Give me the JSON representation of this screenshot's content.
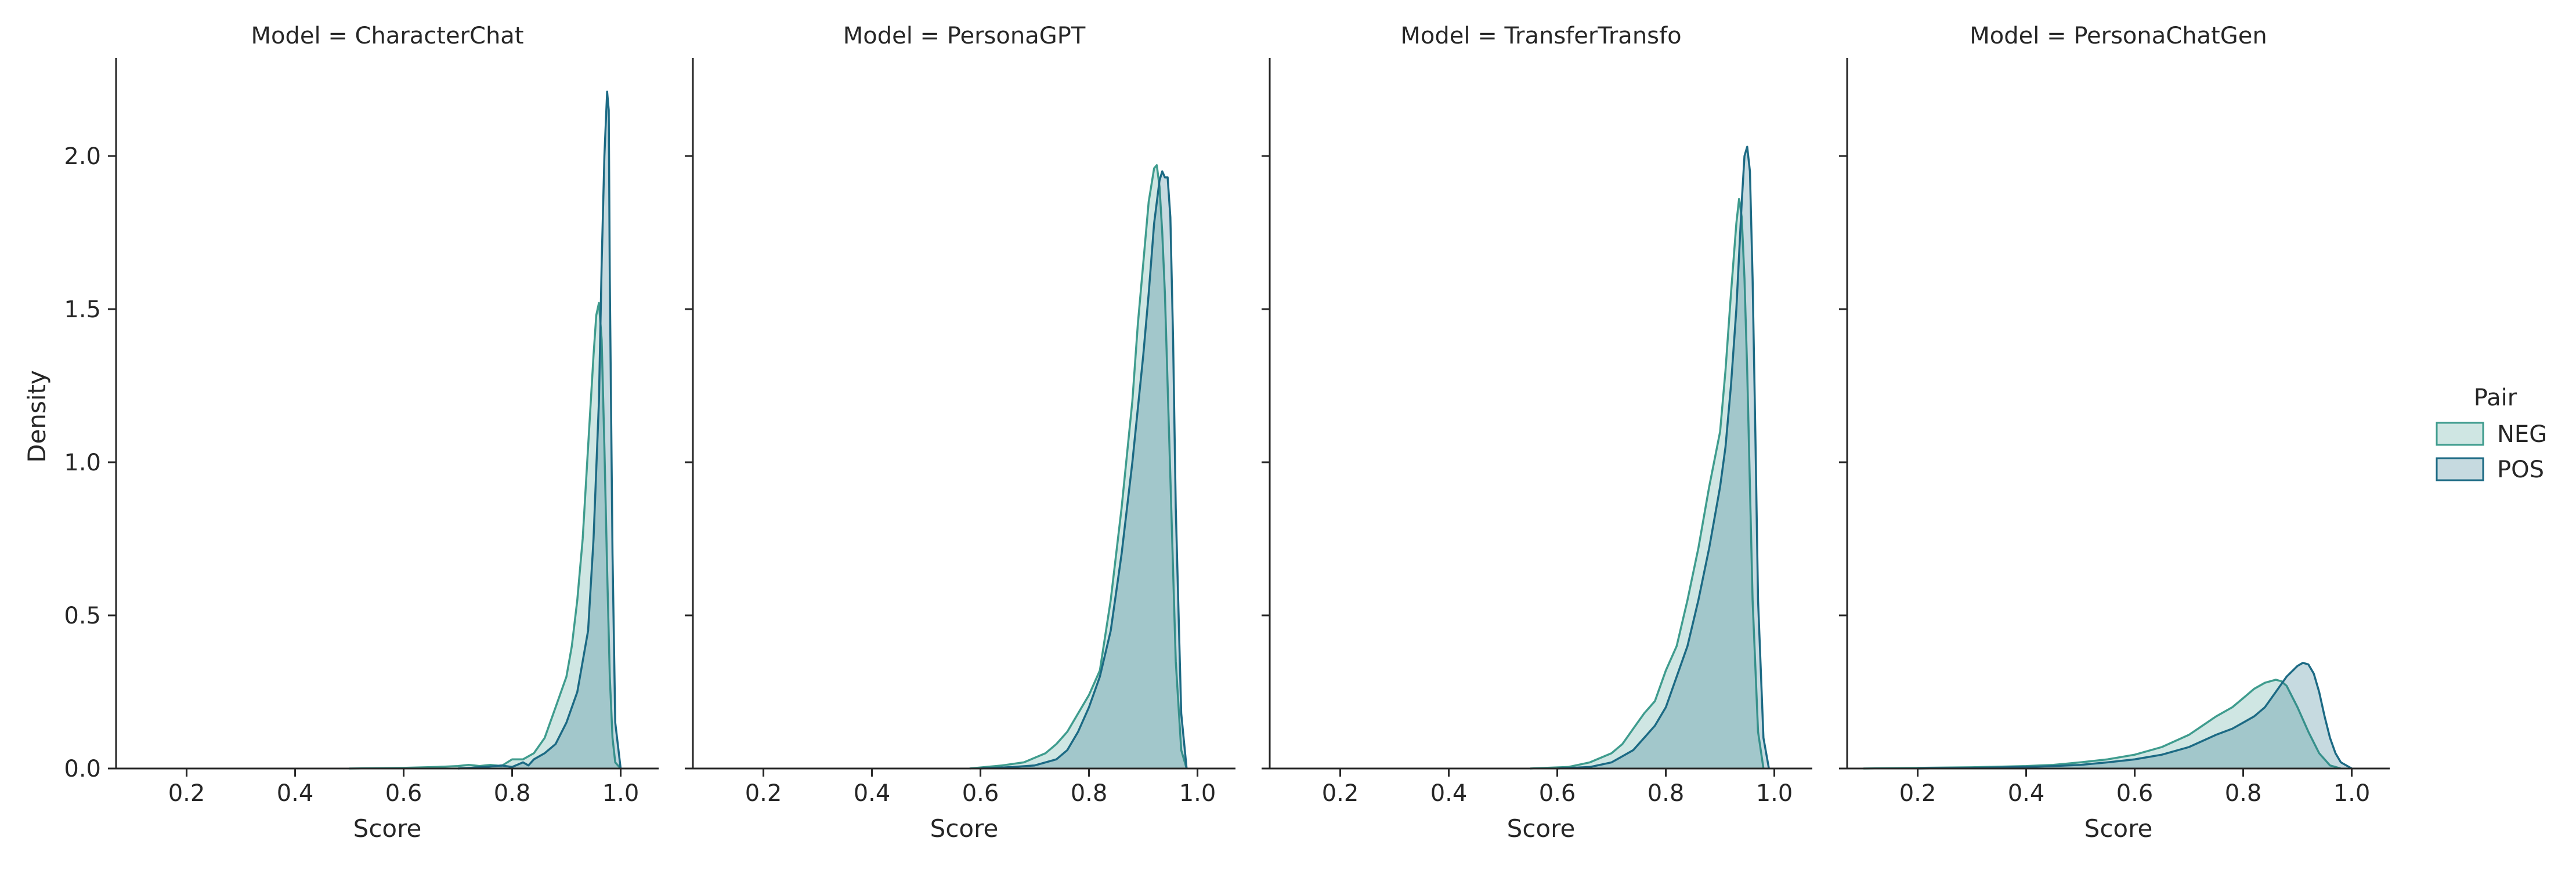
{
  "chart_data": {
    "type": "area",
    "kind": "kde",
    "facet_variable": "Model",
    "ylabel": "Density",
    "ylim": [
      0,
      2.32
    ],
    "yticks": [
      0.0,
      0.5,
      1.0,
      1.5,
      2.0
    ],
    "ytick_labels": [
      "0.0",
      "0.5",
      "1.0",
      "1.5",
      "2.0"
    ],
    "grid": false,
    "legend": {
      "title": "Pair",
      "placement": "right",
      "entries": [
        {
          "label": "NEG",
          "color": "#3f9c8e"
        },
        {
          "label": "POS",
          "color": "#1c6a84"
        }
      ]
    },
    "colors": {
      "NEG": "#3f9c8e",
      "POS": "#1c6a84"
    },
    "panels": [
      {
        "title": "Model = CharacterChat",
        "xlabel": "Score",
        "xlim": [
          0.07,
          1.07
        ],
        "xticks": [
          0.2,
          0.4,
          0.6,
          0.8,
          1.0
        ],
        "xtick_labels": [
          "0.2",
          "0.4",
          "0.6",
          "0.8",
          "1.0"
        ],
        "series": [
          {
            "name": "NEG",
            "x": [
              0.5,
              0.6,
              0.66,
              0.7,
              0.72,
              0.74,
              0.76,
              0.78,
              0.8,
              0.82,
              0.84,
              0.86,
              0.88,
              0.9,
              0.91,
              0.92,
              0.93,
              0.94,
              0.95,
              0.955,
              0.96,
              0.965,
              0.97,
              0.975,
              0.98,
              0.985,
              0.99,
              1.0
            ],
            "y": [
              0.0,
              0.002,
              0.005,
              0.008,
              0.012,
              0.008,
              0.012,
              0.008,
              0.03,
              0.03,
              0.05,
              0.1,
              0.2,
              0.3,
              0.4,
              0.55,
              0.75,
              1.05,
              1.35,
              1.48,
              1.52,
              1.4,
              1.05,
              0.65,
              0.3,
              0.1,
              0.02,
              0.0
            ]
          },
          {
            "name": "POS",
            "x": [
              0.7,
              0.75,
              0.78,
              0.8,
              0.82,
              0.83,
              0.84,
              0.86,
              0.88,
              0.9,
              0.92,
              0.94,
              0.95,
              0.96,
              0.965,
              0.97,
              0.975,
              0.978,
              0.98,
              0.985,
              0.99,
              1.0
            ],
            "y": [
              0.0,
              0.005,
              0.01,
              0.005,
              0.02,
              0.01,
              0.03,
              0.05,
              0.08,
              0.15,
              0.25,
              0.45,
              0.75,
              1.2,
              1.65,
              2.0,
              2.21,
              2.15,
              1.6,
              0.7,
              0.15,
              0.0
            ]
          }
        ]
      },
      {
        "title": "Model = PersonaGPT",
        "xlabel": "Score",
        "xlim": [
          0.07,
          1.07
        ],
        "xticks": [
          0.2,
          0.4,
          0.6,
          0.8,
          1.0
        ],
        "xtick_labels": [
          "0.2",
          "0.4",
          "0.6",
          "0.8",
          "1.0"
        ],
        "series": [
          {
            "name": "NEG",
            "x": [
              0.58,
              0.64,
              0.68,
              0.72,
              0.74,
              0.76,
              0.78,
              0.8,
              0.82,
              0.84,
              0.86,
              0.88,
              0.89,
              0.9,
              0.91,
              0.92,
              0.925,
              0.93,
              0.935,
              0.94,
              0.95,
              0.96,
              0.97,
              0.98
            ],
            "y": [
              0.0,
              0.01,
              0.02,
              0.05,
              0.08,
              0.12,
              0.18,
              0.24,
              0.32,
              0.55,
              0.85,
              1.2,
              1.45,
              1.65,
              1.85,
              1.96,
              1.97,
              1.9,
              1.75,
              1.55,
              0.95,
              0.35,
              0.06,
              0.0
            ]
          },
          {
            "name": "POS",
            "x": [
              0.6,
              0.66,
              0.7,
              0.74,
              0.76,
              0.78,
              0.8,
              0.82,
              0.84,
              0.86,
              0.88,
              0.9,
              0.91,
              0.92,
              0.93,
              0.935,
              0.94,
              0.945,
              0.95,
              0.955,
              0.96,
              0.97,
              0.98
            ],
            "y": [
              0.0,
              0.005,
              0.01,
              0.03,
              0.06,
              0.12,
              0.2,
              0.3,
              0.45,
              0.7,
              1.0,
              1.35,
              1.55,
              1.78,
              1.92,
              1.95,
              1.93,
              1.93,
              1.8,
              1.4,
              0.85,
              0.18,
              0.0
            ]
          }
        ]
      },
      {
        "title": "Model = TransferTransfo",
        "xlabel": "Score",
        "xlim": [
          0.07,
          1.07
        ],
        "xticks": [
          0.2,
          0.4,
          0.6,
          0.8,
          1.0
        ],
        "xtick_labels": [
          "0.2",
          "0.4",
          "0.6",
          "0.8",
          "1.0"
        ],
        "series": [
          {
            "name": "NEG",
            "x": [
              0.55,
              0.62,
              0.66,
              0.7,
              0.72,
              0.74,
              0.76,
              0.78,
              0.8,
              0.82,
              0.84,
              0.86,
              0.88,
              0.9,
              0.91,
              0.92,
              0.93,
              0.935,
              0.94,
              0.945,
              0.95,
              0.96,
              0.97,
              0.98
            ],
            "y": [
              0.0,
              0.005,
              0.02,
              0.05,
              0.08,
              0.13,
              0.18,
              0.22,
              0.32,
              0.4,
              0.55,
              0.72,
              0.92,
              1.1,
              1.3,
              1.55,
              1.78,
              1.86,
              1.8,
              1.6,
              1.3,
              0.55,
              0.12,
              0.0
            ]
          },
          {
            "name": "POS",
            "x": [
              0.6,
              0.66,
              0.7,
              0.72,
              0.74,
              0.76,
              0.78,
              0.8,
              0.82,
              0.84,
              0.86,
              0.88,
              0.9,
              0.91,
              0.92,
              0.93,
              0.94,
              0.945,
              0.95,
              0.955,
              0.96,
              0.965,
              0.97,
              0.98,
              0.99
            ],
            "y": [
              0.0,
              0.005,
              0.02,
              0.04,
              0.06,
              0.1,
              0.14,
              0.2,
              0.3,
              0.4,
              0.55,
              0.72,
              0.92,
              1.05,
              1.25,
              1.5,
              1.85,
              2.0,
              2.03,
              1.95,
              1.6,
              1.1,
              0.55,
              0.1,
              0.0
            ]
          }
        ]
      },
      {
        "title": "Model = PersonaChatGen",
        "xlabel": "Score",
        "xlim": [
          0.07,
          1.07
        ],
        "xticks": [
          0.2,
          0.4,
          0.6,
          0.8,
          1.0
        ],
        "xtick_labels": [
          "0.2",
          "0.4",
          "0.6",
          "0.8",
          "1.0"
        ],
        "series": [
          {
            "name": "NEG",
            "x": [
              0.1,
              0.2,
              0.3,
              0.4,
              0.45,
              0.5,
              0.55,
              0.6,
              0.65,
              0.7,
              0.75,
              0.78,
              0.8,
              0.82,
              0.84,
              0.86,
              0.87,
              0.88,
              0.9,
              0.92,
              0.94,
              0.96,
              0.98
            ],
            "y": [
              0.0,
              0.002,
              0.004,
              0.008,
              0.012,
              0.02,
              0.03,
              0.045,
              0.07,
              0.11,
              0.17,
              0.2,
              0.23,
              0.26,
              0.28,
              0.29,
              0.285,
              0.27,
              0.2,
              0.12,
              0.05,
              0.01,
              0.0
            ]
          },
          {
            "name": "POS",
            "x": [
              0.2,
              0.3,
              0.4,
              0.45,
              0.5,
              0.55,
              0.6,
              0.65,
              0.7,
              0.75,
              0.78,
              0.8,
              0.82,
              0.84,
              0.86,
              0.88,
              0.9,
              0.91,
              0.92,
              0.93,
              0.94,
              0.95,
              0.96,
              0.97,
              0.98,
              1.0
            ],
            "y": [
              0.0,
              0.002,
              0.005,
              0.008,
              0.012,
              0.02,
              0.03,
              0.045,
              0.07,
              0.11,
              0.13,
              0.15,
              0.17,
              0.2,
              0.25,
              0.3,
              0.335,
              0.345,
              0.34,
              0.31,
              0.25,
              0.17,
              0.1,
              0.05,
              0.02,
              0.0
            ]
          }
        ]
      }
    ]
  }
}
